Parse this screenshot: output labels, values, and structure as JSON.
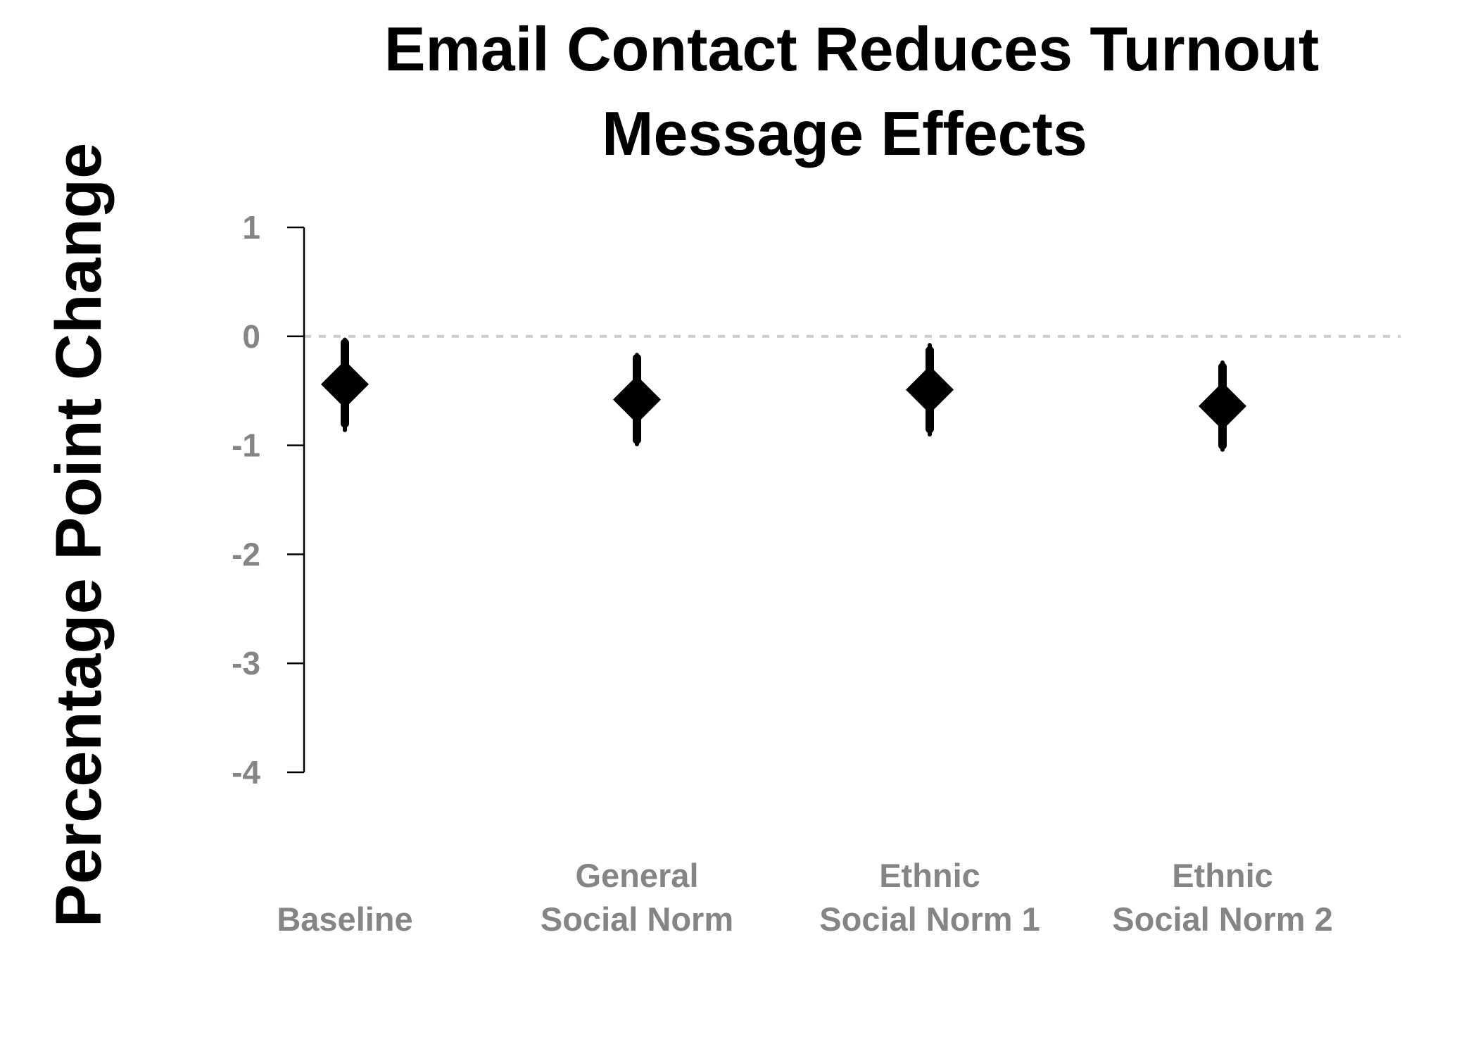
{
  "chart_data": {
    "type": "scatter",
    "title": "Email Contact Reduces Turnout",
    "subtitle": "Message Effects",
    "xlabel": "",
    "ylabel": "Percentage Point Change",
    "ylim": [
      -4,
      1
    ],
    "yticks": [
      "1",
      "0",
      "-1",
      "-2",
      "-3",
      "-4"
    ],
    "reference_line": 0,
    "grid": false,
    "categories": [
      {
        "line1": "",
        "line2": "Baseline"
      },
      {
        "line1": "General",
        "line2": "Social Norm"
      },
      {
        "line1": "Ethnic",
        "line2": "Social Norm 1"
      },
      {
        "line1": "Ethnic",
        "line2": "Social Norm 2"
      }
    ],
    "points": [
      {
        "estimate": -0.44,
        "ci90": [
          -0.8,
          -0.06
        ],
        "ci95": [
          -0.86,
          -0.03
        ]
      },
      {
        "estimate": -0.58,
        "ci90": [
          -0.95,
          -0.2
        ],
        "ci95": [
          -0.99,
          -0.17
        ]
      },
      {
        "estimate": -0.49,
        "ci90": [
          -0.85,
          -0.13
        ],
        "ci95": [
          -0.9,
          -0.08
        ]
      },
      {
        "estimate": -0.64,
        "ci90": [
          -1.0,
          -0.28
        ],
        "ci95": [
          -1.04,
          -0.24
        ]
      }
    ],
    "marker": "diamond",
    "colors": {
      "point": "#000000",
      "ticks": "#858585",
      "reference": "#cccccc",
      "axis": "#000000"
    }
  }
}
